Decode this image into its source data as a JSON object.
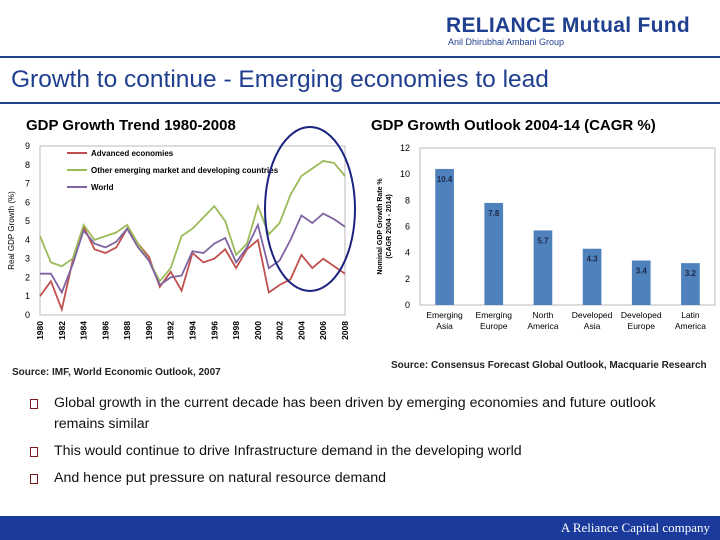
{
  "header": {
    "logo_main": "RELIANCE",
    "logo_suffix": "Mutual Fund",
    "logo_sub": "Anil Dhirubhai Ambani Group"
  },
  "slide": {
    "title": "Growth to continue - Emerging economies to lead"
  },
  "left_chart": {
    "heading": "GDP Growth Trend 1980-2008",
    "source": "Source: IMF, World Economic Outlook, 2007"
  },
  "right_chart": {
    "heading": "GDP Growth Outlook 2004-14 (CAGR %)",
    "source": "Source: Consensus Forecast Global Outlook, Macquarie Research"
  },
  "bullets": [
    "Global growth in the current decade has been driven by emerging economies and future outlook remains similar",
    "This would continue to drive Infrastructure demand in the developing world",
    "And hence put pressure on natural resource demand"
  ],
  "footer": {
    "text": "A Reliance Capital company"
  },
  "colors": {
    "brand": "#1f3f8f",
    "advanced": "#c0504d",
    "other_emerging": "#9bbb59",
    "world": "#8064a2",
    "bar": "#4f81bd",
    "circle": "#1a237e"
  },
  "chart_data": [
    {
      "type": "line",
      "ylabel": "Real GDP Growth (%)",
      "ylim": [
        0,
        9
      ],
      "yticks": [
        "0",
        "1",
        "2",
        "3",
        "4",
        "5",
        "6",
        "7",
        "8",
        "9"
      ],
      "x": [
        "1980",
        "1981",
        "1982",
        "1983",
        "1984",
        "1985",
        "1986",
        "1987",
        "1988",
        "1989",
        "1990",
        "1991",
        "1992",
        "1993",
        "1994",
        "1995",
        "1996",
        "1997",
        "1998",
        "1999",
        "2000",
        "2001",
        "2002",
        "2003",
        "2004",
        "2005",
        "2006",
        "2007",
        "2008"
      ],
      "xtick_labels": [
        "1980",
        "1982",
        "1984",
        "1986",
        "1988",
        "1990",
        "1992",
        "1994",
        "1996",
        "1998",
        "2000",
        "2002",
        "2004",
        "2006",
        "2008"
      ],
      "legend_position": "top",
      "series": [
        {
          "name": "Advanced economies",
          "values": [
            1.0,
            1.8,
            0.3,
            2.9,
            4.7,
            3.5,
            3.3,
            3.6,
            4.6,
            3.8,
            3.1,
            1.5,
            2.3,
            1.3,
            3.3,
            2.8,
            3.0,
            3.5,
            2.5,
            3.5,
            4.0,
            1.2,
            1.6,
            1.9,
            3.2,
            2.5,
            3.0,
            2.6,
            2.2
          ]
        },
        {
          "name": "Other emerging market and developing countries",
          "values": [
            4.2,
            2.8,
            2.6,
            3.0,
            4.8,
            4.0,
            4.2,
            4.4,
            4.8,
            3.8,
            2.9,
            1.8,
            2.5,
            4.2,
            4.6,
            5.2,
            5.8,
            5.0,
            3.2,
            3.8,
            5.8,
            4.3,
            4.9,
            6.4,
            7.4,
            7.8,
            8.2,
            8.1,
            7.4
          ]
        },
        {
          "name": "World",
          "values": [
            2.2,
            2.2,
            1.2,
            2.7,
            4.5,
            3.8,
            3.6,
            3.9,
            4.6,
            3.6,
            2.9,
            1.6,
            2.0,
            2.1,
            3.4,
            3.3,
            3.8,
            4.1,
            2.8,
            3.6,
            4.8,
            2.5,
            2.9,
            4.0,
            5.3,
            4.9,
            5.4,
            5.1,
            4.7
          ]
        }
      ]
    },
    {
      "type": "bar",
      "ylabel": "Nominal GDP Growth Rate % (CAGR 2004 - 2014)",
      "ylim": [
        0,
        12
      ],
      "yticks": [
        "0",
        "2",
        "4",
        "6",
        "8",
        "10",
        "12"
      ],
      "categories": [
        "Emerging Asia",
        "Emerging Europe",
        "North America",
        "Developed Asia",
        "Developed Europe",
        "Latin America"
      ],
      "values": [
        10.4,
        7.8,
        5.7,
        4.3,
        3.4,
        3.2
      ],
      "data_labels": [
        "10.4",
        "7.8",
        "5.7",
        "4.3",
        "3.4",
        "3.2"
      ]
    }
  ]
}
